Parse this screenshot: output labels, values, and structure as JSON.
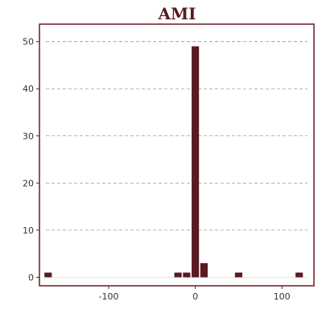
{
  "chart_data": {
    "type": "bar",
    "title": "AMI",
    "xlabel": "",
    "ylabel": "",
    "xlim": [
      -180,
      137
    ],
    "ylim": [
      -1.8,
      53.7
    ],
    "x_ticks": [
      -100,
      0,
      100
    ],
    "y_ticks": [
      0,
      10,
      20,
      30,
      40,
      50
    ],
    "bin_width": 10,
    "bars": [
      {
        "x": -170,
        "value": 1
      },
      {
        "x": -20,
        "value": 1
      },
      {
        "x": -10,
        "value": 1
      },
      {
        "x": 0,
        "value": 49
      },
      {
        "x": 10,
        "value": 3
      },
      {
        "x": 50,
        "value": 1
      },
      {
        "x": 120,
        "value": 1
      }
    ],
    "grid": "horizontal-dashed",
    "bar_color": "#5a1a22",
    "frame_color": "#6b1a20",
    "grid_color": "#b09090"
  }
}
